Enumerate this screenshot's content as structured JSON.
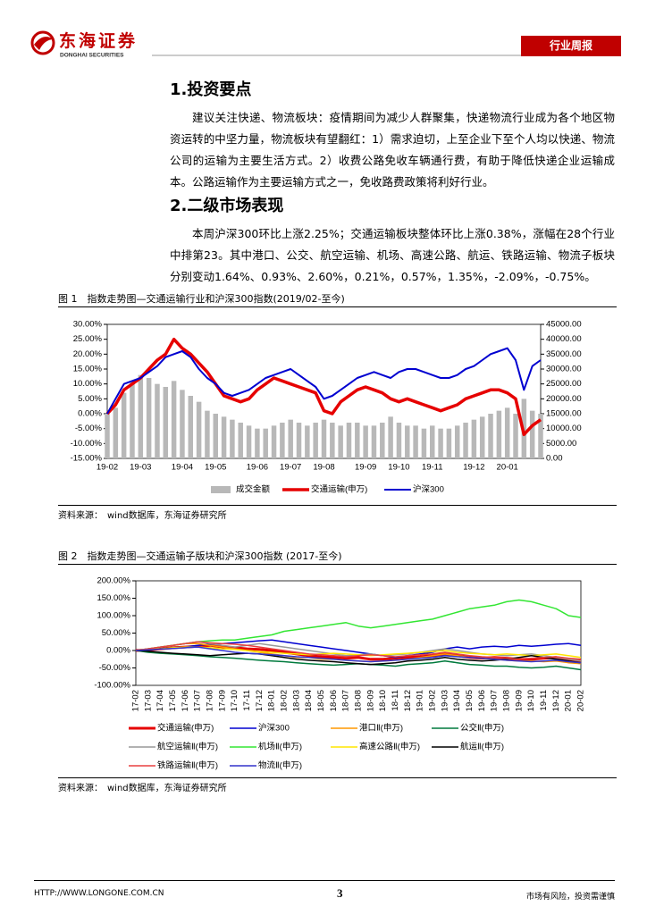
{
  "header": {
    "logo_cn": "东海证券",
    "logo_en": "DONGHAI SECURITIES",
    "tag": "行业周报"
  },
  "sections": [
    {
      "title": "1.投资要点",
      "paragraphs": [
        "建议关注快递、物流板块：疫情期间为减少人群聚集，快递物流行业成为各个地区物资运转的中坚力量，物流板块有望翻红：1）需求迫切，上至企业下至个人均以快递、物流公司的运输为主要生活方式。2）收费公路免收车辆通行费，有助于降低快递企业运输成本。公路运输作为主要运输方式之一，免收路费政策将利好行业。"
      ]
    },
    {
      "title": "2.二级市场表现",
      "paragraphs": [
        "本周沪深300环比上涨2.25%；交通运输板块整体环比上涨0.38%，涨幅在28个行业中排第23。其中港口、公交、航空运输、机场、高速公路、航运、铁路运输、物流子板块分别变动1.64%、0.93%、2.60%，0.21%，0.57%，1.35%，-2.09%，-0.75%。"
      ]
    }
  ],
  "figures": [
    {
      "caption": "图 1　指数走势图—交通运输行业和沪深300指数(2019/02-至今)",
      "source": "资料来源：　wind数据库，东海证券研究所",
      "chart": {
        "type": "bar_line",
        "categories": [
          "19-02",
          null,
          null,
          null,
          "19-03",
          null,
          null,
          null,
          null,
          "19-04",
          null,
          null,
          null,
          "19-05",
          null,
          null,
          null,
          null,
          "19-06",
          null,
          null,
          null,
          "19-07",
          null,
          null,
          null,
          "19-08",
          null,
          null,
          null,
          null,
          "19-09",
          null,
          null,
          null,
          "19-10",
          null,
          null,
          null,
          "19-11",
          null,
          null,
          null,
          null,
          "19-12",
          null,
          null,
          null,
          "20-01",
          null,
          null,
          null,
          null
        ],
        "ylim": [
          -15,
          30
        ],
        "yticks": [
          {
            "value": -15,
            "label": "-15.00%"
          },
          {
            "value": -10,
            "label": "-10.00%"
          },
          {
            "value": -5,
            "label": "-5.00%"
          },
          {
            "value": 0,
            "label": "0.00%"
          },
          {
            "value": 5,
            "label": "5.00%"
          },
          {
            "value": 10,
            "label": "10.00%"
          },
          {
            "value": 15,
            "label": "15.00%"
          },
          {
            "value": 20,
            "label": "20.00%"
          },
          {
            "value": 25,
            "label": "25.00%"
          },
          {
            "value": 30,
            "label": "30.00%"
          }
        ],
        "y2lim": [
          0,
          45000
        ],
        "y2ticks": [
          {
            "value": 0,
            "label": "0.00"
          },
          {
            "value": 5000,
            "label": "5000.00"
          },
          {
            "value": 10000,
            "label": "10000.00"
          },
          {
            "value": 15000,
            "label": "15000.00"
          },
          {
            "value": 20000,
            "label": "20000.00"
          },
          {
            "value": 25000,
            "label": "25000.00"
          },
          {
            "value": 30000,
            "label": "30000.00"
          },
          {
            "value": 35000,
            "label": "35000.00"
          },
          {
            "value": 40000,
            "label": "40000.00"
          },
          {
            "value": 45000,
            "label": "45000.00"
          }
        ],
        "series": [
          {
            "name": "成交金额",
            "type": "bar",
            "axis": "y2",
            "color": "#b8b8b8",
            "values": [
              15000,
              17000,
              22000,
              26000,
              28000,
              27000,
              25000,
              24000,
              26000,
              23000,
              21000,
              19000,
              16000,
              15000,
              14000,
              13000,
              12000,
              11000,
              10000,
              10000,
              11000,
              12000,
              13000,
              12000,
              11000,
              12000,
              13000,
              12000,
              11000,
              12000,
              12000,
              11000,
              11000,
              12000,
              14000,
              12000,
              11000,
              11000,
              10000,
              11000,
              10000,
              10000,
              11000,
              12000,
              13000,
              14000,
              15000,
              16000,
              17000,
              15000,
              20000,
              16000,
              15000
            ]
          },
          {
            "name": "交通运输(申万)",
            "type": "line",
            "color": "#e60000",
            "width": 3.5,
            "values": [
              0,
              3,
              8,
              10,
              12,
              15,
              18,
              20,
              25,
              22,
              20,
              17,
              14,
              10,
              6,
              5,
              4,
              5,
              8,
              10,
              12,
              11,
              10,
              9,
              8,
              7,
              1,
              0,
              4,
              6,
              8,
              9,
              8,
              7,
              5,
              4,
              5,
              4,
              3,
              2,
              1,
              2,
              3,
              5,
              6,
              7,
              8,
              8,
              7,
              5,
              -7,
              -4,
              -2
            ]
          },
          {
            "name": "沪深300",
            "type": "line",
            "color": "#0000d0",
            "width": 2,
            "values": [
              0,
              5,
              10,
              11,
              12,
              14,
              16,
              19,
              20,
              21,
              19,
              15,
              12,
              10,
              7,
              6,
              7,
              8,
              10,
              12,
              13,
              14,
              15,
              13,
              11,
              9,
              5,
              6,
              8,
              10,
              12,
              13,
              14,
              13,
              12,
              14,
              15,
              15,
              14,
              13,
              12,
              12,
              13,
              15,
              16,
              18,
              20,
              21,
              22,
              18,
              8,
              16,
              18
            ]
          }
        ]
      }
    },
    {
      "caption": "图 2　指数走势图—交通运输子版块和沪深300指数 (2017-至今)",
      "source": "资料来源：　wind数据库，东海证券研究所",
      "chart": {
        "type": "line",
        "categories": [
          "17-02",
          "17-03",
          "17-04",
          "17-05",
          "17-06",
          "17-07",
          "17-08",
          "17-09",
          "17-10",
          "17-11",
          "17-12",
          "18-01",
          "18-02",
          "18-03",
          "18-04",
          "18-05",
          "18-06",
          "18-07",
          "18-08",
          "18-09",
          "18-10",
          "18-11",
          "18-12",
          "19-01",
          "19-02",
          "19-03",
          "19-04",
          "19-05",
          "19-06",
          "19-07",
          "19-08",
          "19-09",
          "19-10",
          "19-11",
          "19-12",
          "20-01",
          "20-02"
        ],
        "ylim": [
          -100,
          200
        ],
        "yticks": [
          {
            "value": -100,
            "label": "-100.00%"
          },
          {
            "value": -50,
            "label": "-50.00%"
          },
          {
            "value": 0,
            "label": "0.00%"
          },
          {
            "value": 50,
            "label": "50.00%"
          },
          {
            "value": 100,
            "label": "100.00%"
          },
          {
            "value": 150,
            "label": "150.00%"
          },
          {
            "value": 200,
            "label": "200.00%"
          }
        ],
        "series": [
          {
            "name": "交通运输(申万)",
            "color": "#e60000",
            "width": 3,
            "values": [
              0,
              2,
              5,
              8,
              10,
              12,
              15,
              10,
              8,
              5,
              3,
              0,
              -5,
              -10,
              -15,
              -18,
              -20,
              -22,
              -20,
              -25,
              -25,
              -22,
              -20,
              -18,
              -15,
              -10,
              -15,
              -20,
              -22,
              -20,
              -22,
              -25,
              -25,
              -22,
              -20,
              -25,
              -30
            ]
          },
          {
            "name": "沪深300",
            "color": "#0000d0",
            "width": 1.5,
            "values": [
              0,
              2,
              5,
              8,
              10,
              15,
              18,
              20,
              22,
              25,
              28,
              30,
              25,
              20,
              15,
              10,
              5,
              0,
              -5,
              -10,
              -15,
              -20,
              -15,
              -10,
              -5,
              5,
              10,
              5,
              10,
              12,
              10,
              15,
              12,
              15,
              18,
              20,
              15
            ]
          },
          {
            "name": "港口Ⅱ(申万)",
            "color": "#ff9900",
            "width": 1.5,
            "values": [
              0,
              5,
              10,
              15,
              20,
              20,
              15,
              10,
              5,
              0,
              -5,
              -10,
              -15,
              -20,
              -20,
              -25,
              -25,
              -28,
              -30,
              -32,
              -30,
              -28,
              -25,
              -20,
              -15,
              -10,
              -15,
              -20,
              -22,
              -25,
              -28,
              -30,
              -30,
              -32,
              -30,
              -35,
              -38
            ]
          },
          {
            "name": "公交Ⅱ(申万)",
            "color": "#007a3d",
            "width": 1.5,
            "values": [
              0,
              -5,
              -8,
              -10,
              -12,
              -15,
              -18,
              -20,
              -22,
              -25,
              -28,
              -30,
              -32,
              -35,
              -38,
              -40,
              -42,
              -40,
              -38,
              -40,
              -42,
              -45,
              -40,
              -38,
              -35,
              -30,
              -35,
              -40,
              -42,
              -45,
              -45,
              -48,
              -50,
              -48,
              -45,
              -50,
              -55
            ]
          },
          {
            "name": "航空运输Ⅱ(申万)",
            "color": "#999999",
            "width": 1.5,
            "values": [
              0,
              5,
              10,
              15,
              20,
              25,
              20,
              15,
              10,
              15,
              20,
              15,
              10,
              5,
              0,
              -5,
              -10,
              -15,
              -12,
              -10,
              -15,
              -12,
              -10,
              -5,
              0,
              5,
              0,
              -5,
              -10,
              -12,
              -15,
              -12,
              -10,
              -15,
              -20,
              -25,
              -30
            ]
          },
          {
            "name": "机场Ⅱ(申万)",
            "color": "#33e633",
            "width": 1.5,
            "values": [
              0,
              5,
              10,
              15,
              20,
              25,
              28,
              30,
              30,
              35,
              40,
              45,
              55,
              60,
              65,
              70,
              75,
              80,
              70,
              65,
              70,
              75,
              80,
              85,
              90,
              100,
              110,
              120,
              125,
              130,
              140,
              145,
              140,
              130,
              120,
              100,
              95
            ]
          },
          {
            "name": "高速公路Ⅱ(申万)",
            "color": "#ffe600",
            "width": 1.5,
            "values": [
              0,
              3,
              5,
              8,
              10,
              10,
              8,
              5,
              3,
              0,
              -3,
              -5,
              -8,
              -10,
              -12,
              -10,
              -8,
              -10,
              -12,
              -15,
              -12,
              -10,
              -8,
              -5,
              -3,
              0,
              -5,
              -8,
              -10,
              -12,
              -10,
              -12,
              -15,
              -12,
              -10,
              -15,
              -20
            ]
          },
          {
            "name": "航运Ⅱ(申万)",
            "color": "#000000",
            "width": 1.5,
            "values": [
              0,
              -2,
              -5,
              -8,
              -10,
              -12,
              -15,
              -12,
              -10,
              -8,
              -10,
              -15,
              -20,
              -25,
              -28,
              -30,
              -32,
              -35,
              -38,
              -40,
              -38,
              -35,
              -30,
              -28,
              -25,
              -20,
              -25,
              -28,
              -30,
              -28,
              -25,
              -20,
              -15,
              -20,
              -25,
              -30,
              -35
            ]
          },
          {
            "name": "铁路运输Ⅱ(申万)",
            "color": "#e84040",
            "width": 1.5,
            "values": [
              0,
              5,
              10,
              15,
              20,
              25,
              22,
              20,
              18,
              15,
              10,
              5,
              0,
              -5,
              -10,
              -12,
              -15,
              -18,
              -15,
              -12,
              -15,
              -18,
              -15,
              -12,
              -10,
              -5,
              -10,
              -15,
              -18,
              -20,
              -22,
              -25,
              -22,
              -20,
              -18,
              -22,
              -25
            ]
          },
          {
            "name": "物流Ⅱ(申万)",
            "color": "#3333cc",
            "width": 1.5,
            "values": [
              0,
              2,
              4,
              6,
              8,
              10,
              5,
              0,
              -5,
              -8,
              -10,
              -12,
              -15,
              -18,
              -20,
              -22,
              -25,
              -28,
              -30,
              -32,
              -30,
              -28,
              -25,
              -22,
              -20,
              -15,
              -18,
              -20,
              -22,
              -25,
              -28,
              -30,
              -32,
              -30,
              -28,
              -32,
              -35
            ]
          }
        ]
      }
    }
  ],
  "footer": {
    "url": "HTTP://WWW.LONGONE.COM.CN",
    "page": "3",
    "disclaimer": "市场有风险，投资需谨慎"
  }
}
